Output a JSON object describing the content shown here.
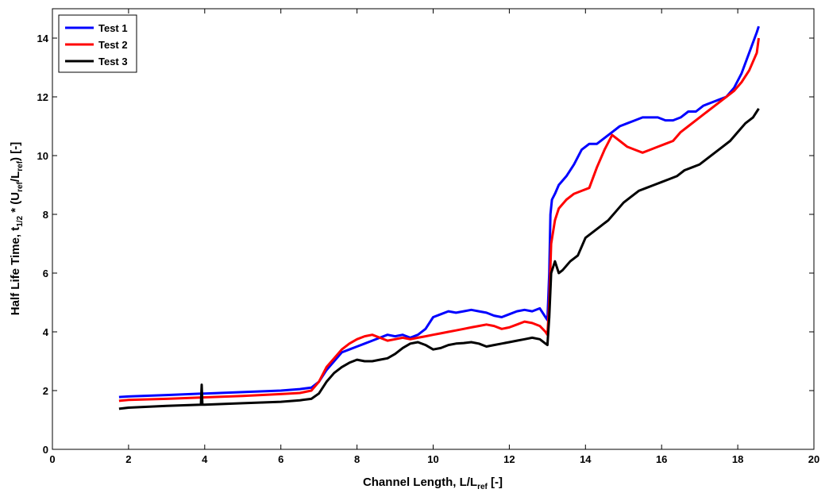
{
  "chart_data": {
    "type": "line",
    "xlabel": {
      "main": "Channel Length, L/L",
      "sub": "ref",
      "tail": " [-]"
    },
    "ylabel": {
      "p1": "Half Life Time, t",
      "p1sub": "1/2",
      "p2": " * (U",
      "p2sub": "ref",
      "p3": "/L",
      "p3sub": "ref",
      "p4": ") [-]"
    },
    "xlim": [
      0,
      20
    ],
    "ylim": [
      0,
      15
    ],
    "xticks": [
      0,
      2,
      4,
      6,
      8,
      10,
      12,
      14,
      16,
      18,
      20
    ],
    "yticks": [
      0,
      2,
      4,
      6,
      8,
      10,
      12,
      14
    ],
    "grid": false,
    "legend_position": "top-left",
    "series": [
      {
        "name": "Test 1",
        "color": "#0000ff",
        "x": [
          1.75,
          2,
          3,
          4,
          5,
          6,
          6.5,
          6.8,
          7,
          7.2,
          7.4,
          7.6,
          7.8,
          8,
          8.2,
          8.4,
          8.6,
          8.8,
          9,
          9.2,
          9.4,
          9.6,
          9.8,
          10,
          10.2,
          10.4,
          10.6,
          10.8,
          11,
          11.2,
          11.4,
          11.6,
          11.8,
          12,
          12.2,
          12.4,
          12.6,
          12.8,
          12.95,
          13.0,
          13.05,
          13.08,
          13.12,
          13.2,
          13.3,
          13.5,
          13.7,
          13.9,
          14.1,
          14.3,
          14.5,
          14.7,
          14.9,
          15.1,
          15.3,
          15.5,
          15.7,
          15.9,
          16.1,
          16.3,
          16.5,
          16.7,
          16.9,
          17.1,
          17.3,
          17.5,
          17.7,
          17.9,
          18.1,
          18.3,
          18.5,
          18.55
        ],
        "y": [
          1.78,
          1.8,
          1.85,
          1.9,
          1.95,
          2.0,
          2.05,
          2.1,
          2.3,
          2.7,
          3.0,
          3.3,
          3.4,
          3.5,
          3.6,
          3.7,
          3.8,
          3.9,
          3.85,
          3.9,
          3.8,
          3.9,
          4.1,
          4.5,
          4.6,
          4.7,
          4.65,
          4.7,
          4.75,
          4.7,
          4.65,
          4.55,
          4.5,
          4.6,
          4.7,
          4.75,
          4.7,
          4.8,
          4.5,
          4.4,
          6.0,
          8.0,
          8.5,
          8.7,
          9.0,
          9.3,
          9.7,
          10.2,
          10.4,
          10.4,
          10.6,
          10.8,
          11.0,
          11.1,
          11.2,
          11.3,
          11.3,
          11.3,
          11.2,
          11.2,
          11.3,
          11.5,
          11.5,
          11.7,
          11.8,
          11.9,
          12.0,
          12.3,
          12.8,
          13.5,
          14.2,
          14.4
        ]
      },
      {
        "name": "Test 2",
        "color": "#ff0000",
        "x": [
          1.75,
          2,
          3,
          4,
          5,
          6,
          6.5,
          6.8,
          7,
          7.2,
          7.4,
          7.6,
          7.8,
          8,
          8.2,
          8.4,
          8.6,
          8.8,
          9,
          9.2,
          9.4,
          9.6,
          9.8,
          10,
          10.2,
          10.4,
          10.6,
          10.8,
          11,
          11.2,
          11.4,
          11.6,
          11.8,
          12,
          12.2,
          12.4,
          12.6,
          12.8,
          12.95,
          13.0,
          13.05,
          13.1,
          13.2,
          13.3,
          13.5,
          13.7,
          13.9,
          14.1,
          14.3,
          14.5,
          14.7,
          14.9,
          15.1,
          15.3,
          15.5,
          15.7,
          15.9,
          16.1,
          16.3,
          16.5,
          16.7,
          16.9,
          17.1,
          17.3,
          17.5,
          17.7,
          17.9,
          18.1,
          18.3,
          18.5,
          18.55
        ],
        "y": [
          1.65,
          1.68,
          1.72,
          1.77,
          1.82,
          1.88,
          1.92,
          2.0,
          2.3,
          2.8,
          3.1,
          3.4,
          3.6,
          3.75,
          3.85,
          3.9,
          3.8,
          3.7,
          3.75,
          3.8,
          3.75,
          3.8,
          3.85,
          3.9,
          3.95,
          4.0,
          4.05,
          4.1,
          4.15,
          4.2,
          4.25,
          4.2,
          4.1,
          4.15,
          4.25,
          4.35,
          4.3,
          4.2,
          4.0,
          3.9,
          5.0,
          7.0,
          7.8,
          8.2,
          8.5,
          8.7,
          8.8,
          8.9,
          9.6,
          10.2,
          10.7,
          10.5,
          10.3,
          10.2,
          10.1,
          10.2,
          10.3,
          10.4,
          10.5,
          10.8,
          11.0,
          11.2,
          11.4,
          11.6,
          11.8,
          12.0,
          12.2,
          12.5,
          12.9,
          13.5,
          14.0
        ]
      },
      {
        "name": "Test 3",
        "color": "#000000",
        "x": [
          1.75,
          2,
          3,
          3.9,
          3.92,
          3.94,
          3.96,
          4,
          5,
          6,
          6.5,
          6.8,
          7,
          7.2,
          7.4,
          7.6,
          7.8,
          8,
          8.2,
          8.4,
          8.6,
          8.8,
          9,
          9.2,
          9.4,
          9.6,
          9.8,
          10,
          10.2,
          10.4,
          10.6,
          10.8,
          11,
          11.2,
          11.4,
          11.6,
          11.8,
          12,
          12.2,
          12.4,
          12.6,
          12.8,
          12.95,
          13.0,
          13.05,
          13.1,
          13.2,
          13.3,
          13.4,
          13.6,
          13.8,
          14.0,
          14.2,
          14.4,
          14.6,
          14.8,
          15.0,
          15.2,
          15.4,
          15.6,
          15.8,
          16.0,
          16.2,
          16.4,
          16.6,
          16.8,
          17.0,
          17.2,
          17.4,
          17.6,
          17.8,
          18.0,
          18.2,
          18.4,
          18.5,
          18.55
        ],
        "y": [
          1.38,
          1.42,
          1.48,
          1.52,
          2.2,
          1.52,
          1.52,
          1.52,
          1.57,
          1.62,
          1.67,
          1.72,
          1.9,
          2.3,
          2.6,
          2.8,
          2.95,
          3.05,
          3.0,
          3.0,
          3.05,
          3.1,
          3.25,
          3.45,
          3.6,
          3.65,
          3.55,
          3.4,
          3.45,
          3.55,
          3.6,
          3.62,
          3.65,
          3.6,
          3.5,
          3.55,
          3.6,
          3.65,
          3.7,
          3.75,
          3.8,
          3.75,
          3.6,
          3.55,
          4.5,
          6.0,
          6.4,
          6.0,
          6.1,
          6.4,
          6.6,
          7.2,
          7.4,
          7.6,
          7.8,
          8.1,
          8.4,
          8.6,
          8.8,
          8.9,
          9.0,
          9.1,
          9.2,
          9.3,
          9.5,
          9.6,
          9.7,
          9.9,
          10.1,
          10.3,
          10.5,
          10.8,
          11.1,
          11.3,
          11.5,
          11.6
        ]
      }
    ]
  }
}
